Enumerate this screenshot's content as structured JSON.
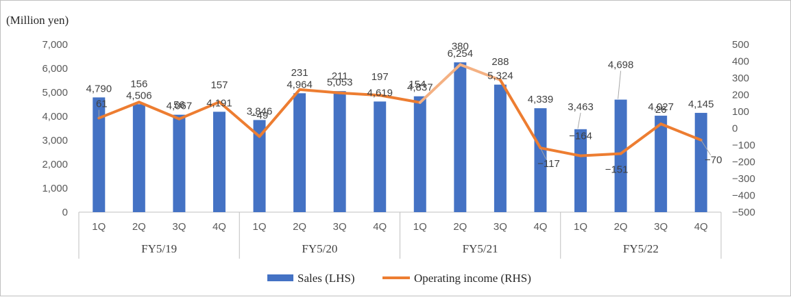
{
  "chart_data": {
    "type": "bar",
    "unit_label": "(Million yen)",
    "categories": [
      "1Q",
      "2Q",
      "3Q",
      "4Q",
      "1Q",
      "2Q",
      "3Q",
      "4Q",
      "1Q",
      "2Q",
      "3Q",
      "4Q",
      "1Q",
      "2Q",
      "3Q",
      "4Q"
    ],
    "groups": [
      {
        "label": "FY5/19",
        "span": 4
      },
      {
        "label": "FY5/20",
        "span": 4
      },
      {
        "label": "FY5/21",
        "span": 4
      },
      {
        "label": "FY5/22",
        "span": 4
      }
    ],
    "series": [
      {
        "name": "Sales (LHS)",
        "type": "bar",
        "axis": "left",
        "color": "#4472c4",
        "values": [
          4790,
          4506,
          4067,
          4191,
          3846,
          4964,
          5053,
          4619,
          4837,
          6254,
          5324,
          4339,
          3463,
          4698,
          4027,
          4145
        ],
        "labels": [
          "4,790",
          "4,506",
          "4,067",
          "4,191",
          "3,846",
          "4,964",
          "5,053",
          "4,619",
          "4,837",
          "6,254",
          "5,324",
          "4,339",
          "3,463",
          "4,698",
          "4,027",
          "4,145"
        ]
      },
      {
        "name": "Operating income (RHS)",
        "type": "line",
        "axis": "right",
        "color": "#ed7d31",
        "highlight_color": "#f4b183",
        "values": [
          61,
          156,
          56,
          157,
          -49,
          231,
          211,
          197,
          154,
          380,
          288,
          -117,
          -164,
          -151,
          26,
          -70
        ],
        "labels": [
          "61",
          "156",
          "56",
          "157",
          "−49",
          "231",
          "211",
          "197",
          "154",
          "380",
          "288",
          "−117",
          "−164",
          "−151",
          "26",
          "−70"
        ]
      }
    ],
    "y_left": {
      "min": 0,
      "max": 7000,
      "ticks": [
        "0",
        "1,000",
        "2,000",
        "3,000",
        "4,000",
        "5,000",
        "6,000",
        "7,000"
      ]
    },
    "y_right": {
      "min": -500,
      "max": 500,
      "ticks": [
        "−500",
        "−400",
        "−300",
        "−200",
        "−100",
        "0",
        "100",
        "200",
        "300",
        "400",
        "500"
      ]
    },
    "negative_label_color": "#ff0000",
    "grid": false,
    "legend_position": "bottom"
  }
}
